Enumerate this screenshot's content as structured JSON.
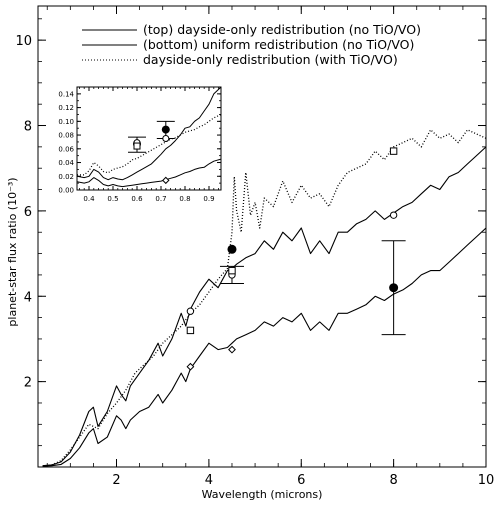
{
  "chart_data": {
    "type": "line",
    "title": "",
    "xlabel": "Wavelength (microns)",
    "ylabel": "planet-star flux ratio (10⁻³)",
    "xlim": [
      0.3,
      10
    ],
    "ylim": [
      0,
      10.8
    ],
    "x_ticks": [
      2,
      4,
      6,
      8,
      10
    ],
    "y_ticks": [
      2,
      4,
      6,
      8,
      10
    ],
    "grid": false,
    "legend_position": "top-right",
    "series": [
      {
        "name": "(top) dayside-only redistribution (no TiO/VO)",
        "style": "solid",
        "color": "#000000",
        "x": [
          0.4,
          0.6,
          0.8,
          1.0,
          1.2,
          1.4,
          1.5,
          1.6,
          1.8,
          2.0,
          2.1,
          2.2,
          2.3,
          2.5,
          2.7,
          2.9,
          3.0,
          3.2,
          3.4,
          3.5,
          3.6,
          3.8,
          4.0,
          4.2,
          4.4,
          4.5,
          4.6,
          4.8,
          5.0,
          5.2,
          5.4,
          5.6,
          5.8,
          6.0,
          6.2,
          6.4,
          6.6,
          6.8,
          7.0,
          7.2,
          7.4,
          7.6,
          7.8,
          8.0,
          8.2,
          8.4,
          8.6,
          8.8,
          9.0,
          9.2,
          9.4,
          9.6,
          9.8,
          10.0
        ],
        "y": [
          0.03,
          0.05,
          0.12,
          0.35,
          0.75,
          1.3,
          1.4,
          0.95,
          1.3,
          1.9,
          1.7,
          1.55,
          1.9,
          2.2,
          2.5,
          2.9,
          2.6,
          3.0,
          3.6,
          3.3,
          3.7,
          4.1,
          4.4,
          4.2,
          4.6,
          4.65,
          4.75,
          4.9,
          5.0,
          5.3,
          5.1,
          5.5,
          5.3,
          5.6,
          5.0,
          5.3,
          5.0,
          5.5,
          5.5,
          5.7,
          5.8,
          6.0,
          5.8,
          5.95,
          6.1,
          6.2,
          6.4,
          6.6,
          6.5,
          6.8,
          6.9,
          7.1,
          7.3,
          7.5
        ]
      },
      {
        "name": "(bottom) uniform redistribution (no TiO/VO)",
        "style": "solid",
        "color": "#000000",
        "x": [
          0.4,
          0.6,
          0.8,
          1.0,
          1.2,
          1.4,
          1.5,
          1.6,
          1.8,
          2.0,
          2.1,
          2.2,
          2.3,
          2.5,
          2.7,
          2.9,
          3.0,
          3.2,
          3.4,
          3.5,
          3.6,
          3.8,
          4.0,
          4.2,
          4.4,
          4.5,
          4.6,
          4.8,
          5.0,
          5.2,
          5.4,
          5.6,
          5.8,
          6.0,
          6.2,
          6.4,
          6.6,
          6.8,
          7.0,
          7.2,
          7.4,
          7.6,
          7.8,
          8.0,
          8.2,
          8.4,
          8.6,
          8.8,
          9.0,
          9.2,
          9.4,
          9.6,
          9.8,
          10.0
        ],
        "y": [
          0.02,
          0.03,
          0.06,
          0.2,
          0.45,
          0.8,
          0.9,
          0.55,
          0.7,
          1.2,
          1.1,
          0.9,
          1.1,
          1.3,
          1.4,
          1.7,
          1.5,
          1.8,
          2.2,
          2.0,
          2.3,
          2.6,
          2.9,
          2.75,
          2.8,
          2.9,
          3.0,
          3.1,
          3.2,
          3.4,
          3.3,
          3.5,
          3.4,
          3.6,
          3.2,
          3.4,
          3.2,
          3.6,
          3.6,
          3.7,
          3.8,
          4.0,
          3.9,
          4.05,
          4.15,
          4.3,
          4.5,
          4.6,
          4.6,
          4.8,
          5.0,
          5.2,
          5.4,
          5.6
        ]
      },
      {
        "name": "dayside-only redistribution (with TiO/VO)",
        "style": "dotted",
        "color": "#000000",
        "x": [
          0.4,
          0.6,
          0.8,
          1.0,
          1.2,
          1.4,
          1.6,
          1.8,
          2.0,
          2.2,
          2.4,
          2.6,
          2.8,
          3.0,
          3.2,
          3.4,
          3.6,
          3.8,
          4.0,
          4.2,
          4.4,
          4.5,
          4.55,
          4.6,
          4.7,
          4.8,
          4.9,
          5.0,
          5.1,
          5.2,
          5.4,
          5.6,
          5.8,
          6.0,
          6.2,
          6.4,
          6.6,
          6.8,
          7.0,
          7.2,
          7.4,
          7.6,
          7.8,
          8.0,
          8.2,
          8.4,
          8.6,
          8.8,
          9.0,
          9.2,
          9.4,
          9.6,
          9.8,
          10.0
        ],
        "y": [
          0.02,
          0.05,
          0.15,
          0.4,
          0.7,
          1.0,
          0.9,
          1.25,
          1.5,
          1.8,
          2.2,
          2.4,
          2.6,
          2.9,
          3.1,
          3.3,
          3.6,
          3.8,
          4.1,
          4.4,
          4.65,
          5.5,
          6.8,
          6.0,
          5.5,
          6.9,
          5.9,
          6.2,
          5.6,
          6.3,
          6.1,
          6.7,
          6.2,
          6.6,
          6.3,
          6.4,
          6.1,
          6.6,
          6.9,
          7.0,
          7.1,
          7.4,
          7.2,
          7.5,
          7.6,
          7.7,
          7.5,
          7.9,
          7.7,
          7.8,
          7.6,
          7.9,
          7.8,
          7.7
        ]
      }
    ],
    "markers": [
      {
        "name": "filled-circle",
        "x": [
          4.5,
          8.0
        ],
        "y": [
          5.1,
          4.2
        ]
      },
      {
        "name": "open-circle",
        "x": [
          3.6,
          4.5,
          8.0
        ],
        "y": [
          3.65,
          4.5,
          5.9
        ]
      },
      {
        "name": "open-square",
        "x": [
          3.6,
          4.5,
          8.0
        ],
        "y": [
          3.2,
          4.6,
          7.4
        ]
      },
      {
        "name": "open-diamond",
        "x": [
          3.6,
          4.5
        ],
        "y": [
          2.35,
          2.75
        ]
      }
    ],
    "error_bars": [
      {
        "x": 4.5,
        "y": 4.5,
        "y_low": 4.3,
        "y_high": 4.7
      },
      {
        "x": 8.0,
        "y": 4.2,
        "y_low": 3.1,
        "y_high": 5.3
      }
    ],
    "inset": {
      "type": "line",
      "xlim": [
        0.35,
        0.95
      ],
      "ylim": [
        0.0,
        0.15
      ],
      "x_ticks": [
        0.4,
        0.5,
        0.6,
        0.7,
        0.8,
        0.9
      ],
      "y_ticks": [
        0.0,
        0.02,
        0.04,
        0.06,
        0.08,
        0.1,
        0.12,
        0.14
      ],
      "x_tick_labels": [
        "0.4",
        "0.5",
        "0.6",
        "0.7",
        "0.8",
        "0.9"
      ],
      "y_tick_labels": [
        "0.00",
        "0.02",
        "0.04",
        "0.06",
        "0.08",
        "0.10",
        "0.12",
        "0.14"
      ],
      "series": [
        {
          "name": "(top) dayside-only redistribution (no TiO/VO)",
          "style": "solid",
          "x": [
            0.35,
            0.38,
            0.4,
            0.42,
            0.44,
            0.46,
            0.48,
            0.5,
            0.52,
            0.54,
            0.56,
            0.58,
            0.6,
            0.62,
            0.64,
            0.66,
            0.68,
            0.7,
            0.72,
            0.74,
            0.76,
            0.78,
            0.8,
            0.82,
            0.84,
            0.86,
            0.88,
            0.9,
            0.92,
            0.95
          ],
          "y": [
            0.02,
            0.018,
            0.02,
            0.03,
            0.026,
            0.018,
            0.015,
            0.018,
            0.016,
            0.015,
            0.018,
            0.022,
            0.026,
            0.03,
            0.034,
            0.038,
            0.045,
            0.052,
            0.06,
            0.065,
            0.072,
            0.08,
            0.09,
            0.092,
            0.1,
            0.105,
            0.115,
            0.125,
            0.14,
            0.15
          ]
        },
        {
          "name": "(bottom) uniform redistribution (no TiO/VO)",
          "style": "solid",
          "x": [
            0.35,
            0.38,
            0.4,
            0.42,
            0.44,
            0.46,
            0.48,
            0.5,
            0.52,
            0.54,
            0.56,
            0.58,
            0.6,
            0.62,
            0.64,
            0.66,
            0.68,
            0.7,
            0.72,
            0.74,
            0.76,
            0.78,
            0.8,
            0.82,
            0.84,
            0.86,
            0.88,
            0.9,
            0.92,
            0.95
          ],
          "y": [
            0.012,
            0.01,
            0.012,
            0.018,
            0.014,
            0.008,
            0.006,
            0.008,
            0.006,
            0.005,
            0.006,
            0.007,
            0.008,
            0.009,
            0.01,
            0.011,
            0.012,
            0.013,
            0.015,
            0.017,
            0.019,
            0.022,
            0.025,
            0.027,
            0.03,
            0.032,
            0.033,
            0.038,
            0.042,
            0.045
          ]
        },
        {
          "name": "dayside-only redistribution (with TiO/VO)",
          "style": "dotted",
          "x": [
            0.35,
            0.38,
            0.4,
            0.42,
            0.44,
            0.46,
            0.48,
            0.5,
            0.52,
            0.54,
            0.56,
            0.58,
            0.6,
            0.62,
            0.64,
            0.66,
            0.68,
            0.7,
            0.72,
            0.74,
            0.76,
            0.78,
            0.8,
            0.82,
            0.84,
            0.86,
            0.88,
            0.9,
            0.92,
            0.95
          ],
          "y": [
            0.022,
            0.022,
            0.028,
            0.04,
            0.035,
            0.027,
            0.025,
            0.03,
            0.032,
            0.034,
            0.038,
            0.044,
            0.046,
            0.05,
            0.054,
            0.058,
            0.062,
            0.066,
            0.07,
            0.074,
            0.076,
            0.08,
            0.084,
            0.086,
            0.088,
            0.092,
            0.095,
            0.1,
            0.105,
            0.11
          ]
        }
      ],
      "markers": [
        {
          "name": "filled-circle",
          "x": [
            0.6,
            0.72
          ],
          "y": [
            0.067,
            0.088
          ]
        },
        {
          "name": "open-circle",
          "x": [
            0.6,
            0.72
          ],
          "y": [
            0.069,
            0.075
          ]
        },
        {
          "name": "open-square",
          "x": [
            0.6
          ],
          "y": [
            0.064
          ]
        },
        {
          "name": "open-diamond",
          "x": [
            0.72
          ],
          "y": [
            0.014
          ]
        }
      ],
      "error_bars": [
        {
          "x": 0.6,
          "y": 0.067,
          "y_low": 0.055,
          "y_high": 0.077
        },
        {
          "x": 0.72,
          "y": 0.088,
          "y_low": 0.075,
          "y_high": 0.1
        }
      ]
    }
  }
}
